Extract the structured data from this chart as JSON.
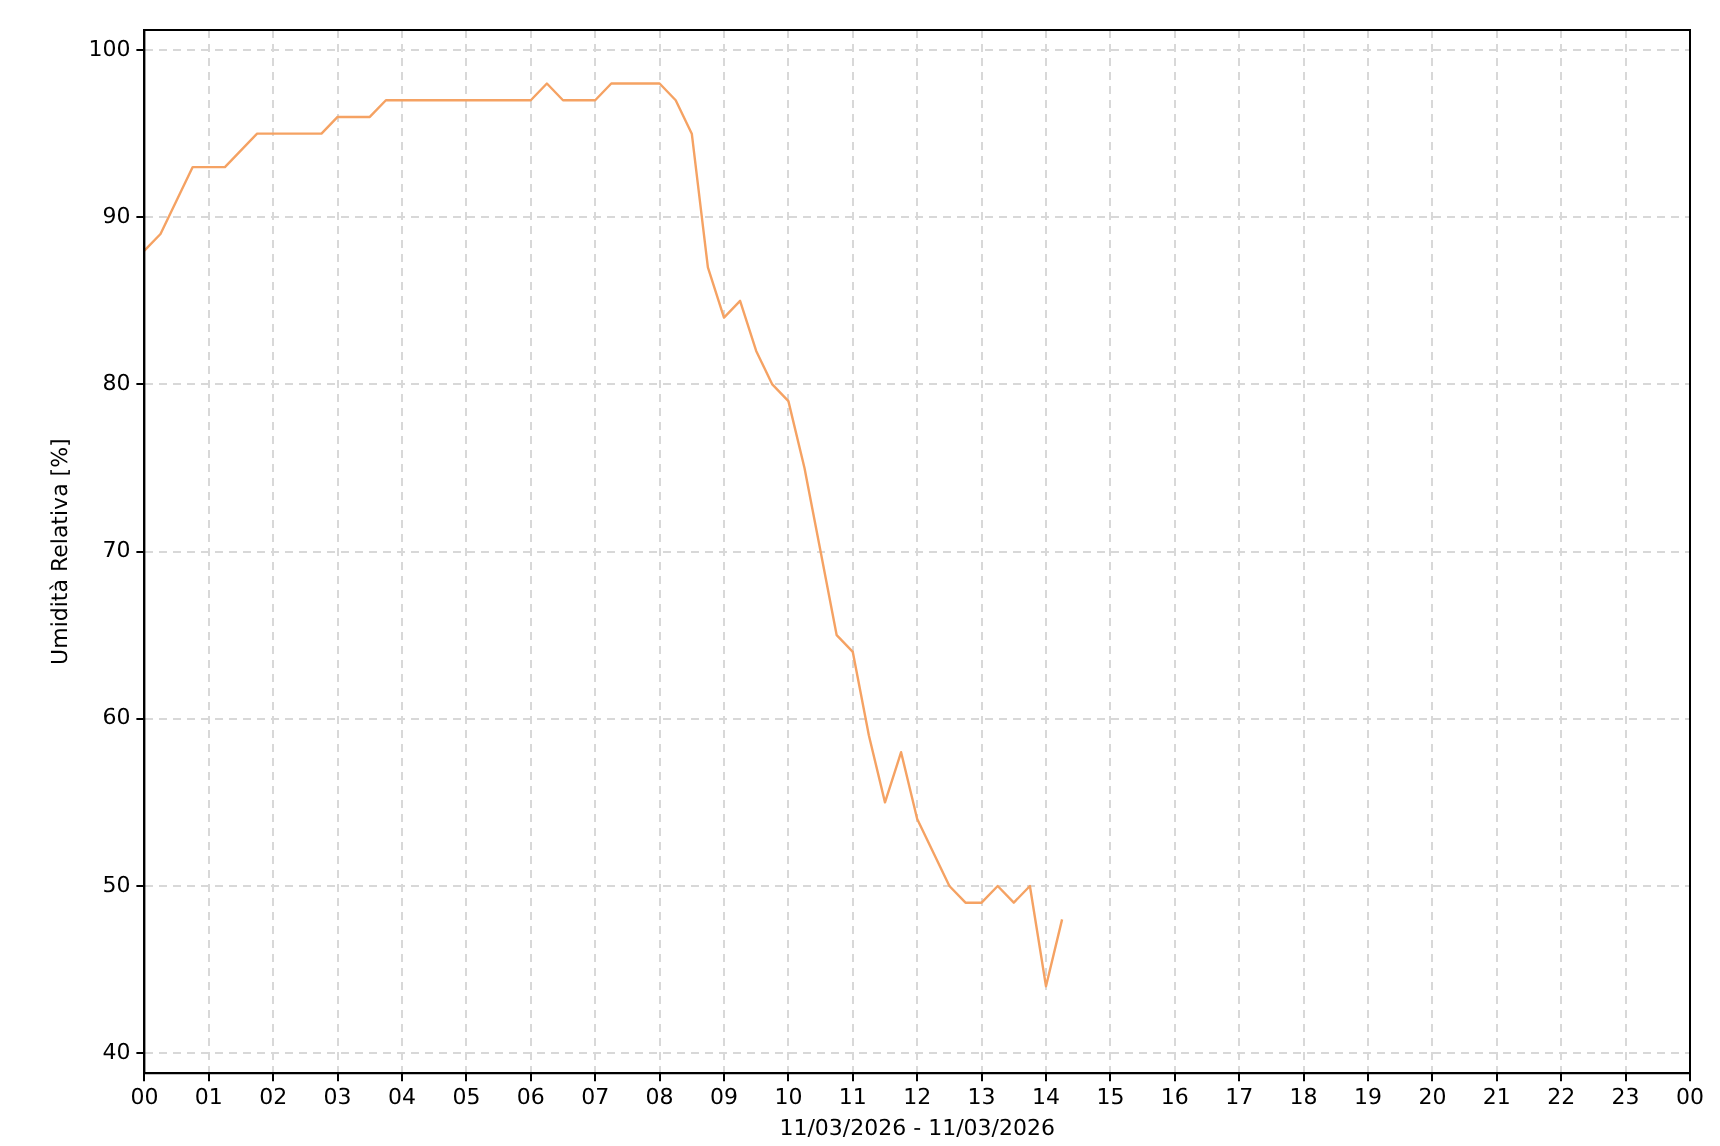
{
  "chart_data": {
    "type": "line",
    "ylabel": "Umidità Relativa [%]",
    "xlabel": "11/03/2026 - 11/03/2026",
    "x": [
      0,
      0.25,
      0.75,
      1.25,
      1.75,
      2.75,
      3,
      3.5,
      3.75,
      6,
      6.25,
      6.5,
      7,
      7.25,
      8,
      8.25,
      8.5,
      8.75,
      9,
      9.25,
      9.5,
      9.75,
      10,
      10.25,
      10.5,
      10.75,
      11,
      11.25,
      11.5,
      11.75,
      12,
      12.5,
      12.75,
      13,
      13.25,
      13.5,
      13.75,
      14,
      14.25
    ],
    "series": [
      {
        "color": "#f5a263",
        "values": [
          88,
          89,
          93,
          93,
          95,
          95,
          96,
          96,
          97,
          97,
          98,
          97,
          97,
          98,
          98,
          97,
          95,
          87,
          84,
          85,
          82,
          80,
          79,
          75,
          70,
          65,
          64,
          59,
          55,
          58,
          54,
          50,
          49,
          49,
          50,
          49,
          50,
          44,
          48
        ]
      }
    ],
    "xlim": [
      0,
      24
    ],
    "ylim": [
      38.8,
      101.2
    ],
    "xticks": [
      {
        "value": 0,
        "label": "00"
      },
      {
        "value": 1,
        "label": "01"
      },
      {
        "value": 2,
        "label": "02"
      },
      {
        "value": 3,
        "label": "03"
      },
      {
        "value": 4,
        "label": "04"
      },
      {
        "value": 5,
        "label": "05"
      },
      {
        "value": 6,
        "label": "06"
      },
      {
        "value": 7,
        "label": "07"
      },
      {
        "value": 8,
        "label": "08"
      },
      {
        "value": 9,
        "label": "09"
      },
      {
        "value": 10,
        "label": "10"
      },
      {
        "value": 11,
        "label": "11"
      },
      {
        "value": 12,
        "label": "12"
      },
      {
        "value": 13,
        "label": "13"
      },
      {
        "value": 14,
        "label": "14"
      },
      {
        "value": 15,
        "label": "15"
      },
      {
        "value": 16,
        "label": "16"
      },
      {
        "value": 17,
        "label": "17"
      },
      {
        "value": 18,
        "label": "18"
      },
      {
        "value": 19,
        "label": "19"
      },
      {
        "value": 20,
        "label": "20"
      },
      {
        "value": 21,
        "label": "21"
      },
      {
        "value": 22,
        "label": "22"
      },
      {
        "value": 23,
        "label": "23"
      },
      {
        "value": 24,
        "label": "00"
      }
    ],
    "yticks": [
      40,
      50,
      60,
      70,
      80,
      90,
      100
    ],
    "grid": true,
    "legend": false,
    "marker": "none",
    "line_style": "solid"
  }
}
